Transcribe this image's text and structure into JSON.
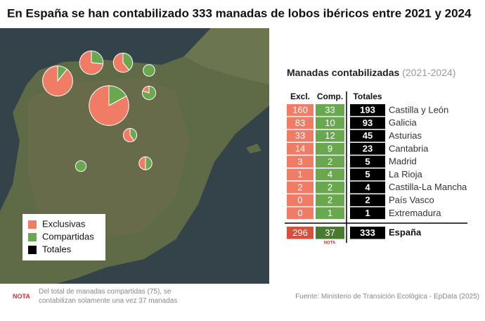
{
  "title": "En España se han contabilizado 333 manadas de lobos ibéricos entre 2021 y 2024",
  "legend": [
    {
      "label": "Exclusivas",
      "color": "#f07c66"
    },
    {
      "label": "Compartidas",
      "color": "#6aa84f"
    },
    {
      "label": "Totales",
      "color": "#000000"
    }
  ],
  "table": {
    "title": "Manadas contabilizadas",
    "period": "(2021-2024)",
    "columns": [
      "Excl.",
      "Comp.",
      "Totales"
    ],
    "rows": [
      {
        "region": "Castilla y León",
        "excl": 160,
        "comp": 33,
        "total": 193
      },
      {
        "region": "Galicia",
        "excl": 83,
        "comp": 10,
        "total": 93
      },
      {
        "region": "Asturias",
        "excl": 33,
        "comp": 12,
        "total": 45
      },
      {
        "region": "Cantabria",
        "excl": 14,
        "comp": 9,
        "total": 23
      },
      {
        "region": "Madrid",
        "excl": 3,
        "comp": 2,
        "total": 5
      },
      {
        "region": "La Rioja",
        "excl": 1,
        "comp": 4,
        "total": 5
      },
      {
        "region": "Castilla-La Mancha",
        "excl": 2,
        "comp": 2,
        "total": 4
      },
      {
        "region": "País Vasco",
        "excl": 0,
        "comp": 2,
        "total": 2
      },
      {
        "region": "Extremadura",
        "excl": 0,
        "comp": 1,
        "total": 1
      }
    ],
    "total": {
      "region": "España",
      "excl": 296,
      "comp": 37,
      "total": 333,
      "note": "NOTA"
    }
  },
  "note": {
    "label": "NOTA",
    "text": "Del total de manadas compartidas (75), se contabilizan solamente una vez 37 manadas"
  },
  "source": "Fuente: Ministerio de Transición Ecológica - EpData (2025)"
}
